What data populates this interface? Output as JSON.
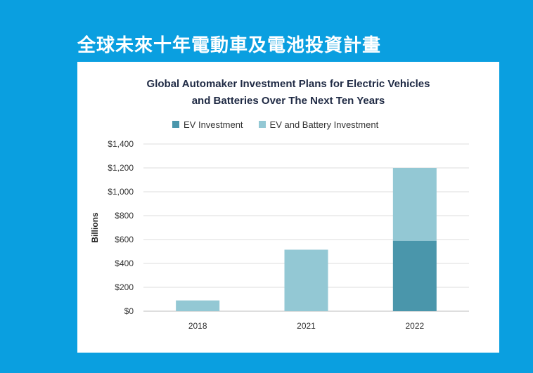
{
  "page_title": "全球未來十年電動車及電池投資計畫",
  "colors": {
    "background": "#0a9fe0",
    "ev_investment": "#4a96ab",
    "ev_battery_investment": "#93c8d4"
  },
  "chart_data": {
    "type": "bar",
    "stacked": true,
    "title_lines": [
      "Global Automaker Investment Plans for Electric Vehicles",
      "and Batteries Over The Next Ten Years"
    ],
    "xlabel": "",
    "ylabel": "Billions",
    "categories": [
      "2018",
      "2021",
      "2022"
    ],
    "ylim": [
      0,
      1400
    ],
    "yticks": [
      0,
      200,
      400,
      600,
      800,
      1000,
      1200,
      1400
    ],
    "ytick_labels": [
      "$0",
      "$200",
      "$400",
      "$600",
      "$800",
      "$1,000",
      "$1,200",
      "$1,400"
    ],
    "grid": true,
    "legend_position": "top",
    "series": [
      {
        "name": "EV Investment",
        "color": "#4a96ab",
        "values": [
          0,
          0,
          590
        ]
      },
      {
        "name": "EV and Battery Investment",
        "color": "#93c8d4",
        "values": [
          90,
          515,
          610
        ]
      }
    ]
  }
}
